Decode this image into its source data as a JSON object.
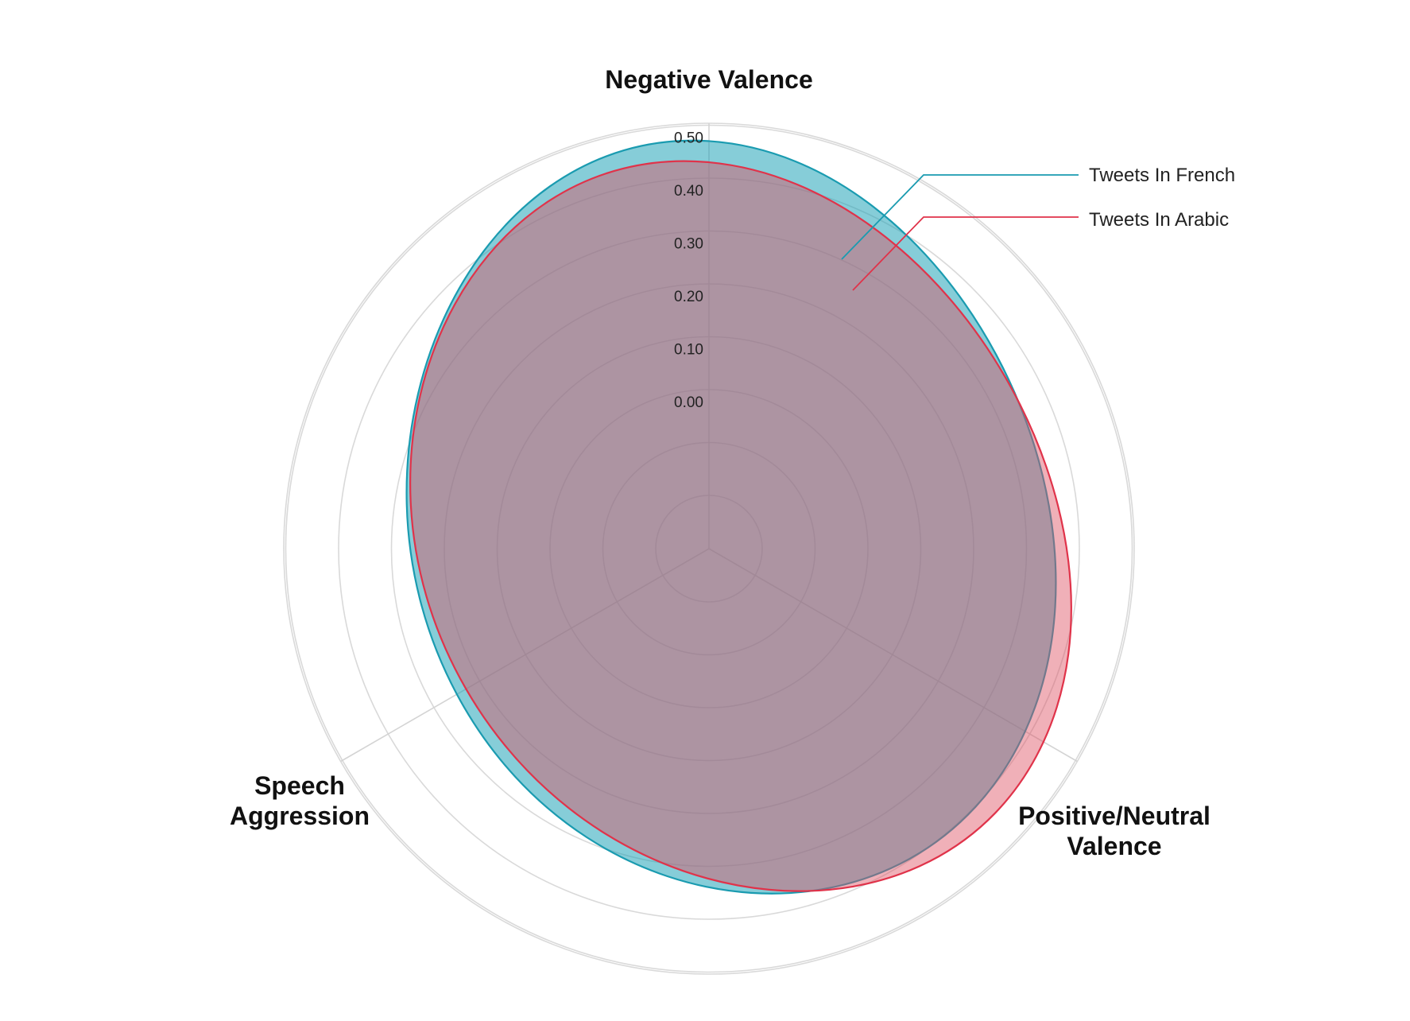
{
  "chart_data": {
    "type": "radar",
    "axes": [
      {
        "label": "Negative Valence",
        "lines": [
          "Negative Valence"
        ]
      },
      {
        "label": "Positive/Neutral Valence",
        "lines": [
          "Positive/Neutral",
          "Valence"
        ]
      },
      {
        "label": "Speech Aggression",
        "lines": [
          "Speech",
          "Aggression"
        ]
      }
    ],
    "radial_ticks": [
      "0.00",
      "0.10",
      "0.20",
      "0.30",
      "0.40",
      "0.50"
    ],
    "radial_tick_values": [
      0,
      0.1,
      0.2,
      0.3,
      0.4,
      0.5
    ],
    "rlim": [
      -0.3,
      0.5
    ],
    "grid": true,
    "legend_placement": "top-right",
    "series": [
      {
        "name": "Tweets In French",
        "values": [
          0.47,
          0.39,
          0.25
        ],
        "color": "#1a9bb0",
        "fill": "rgba(23,160,180,0.52)"
      },
      {
        "name": "Tweets In Arabic",
        "values": [
          0.43,
          0.43,
          0.23
        ],
        "color": "#e0334a",
        "fill": "rgba(222,80,98,0.45)"
      }
    ]
  }
}
